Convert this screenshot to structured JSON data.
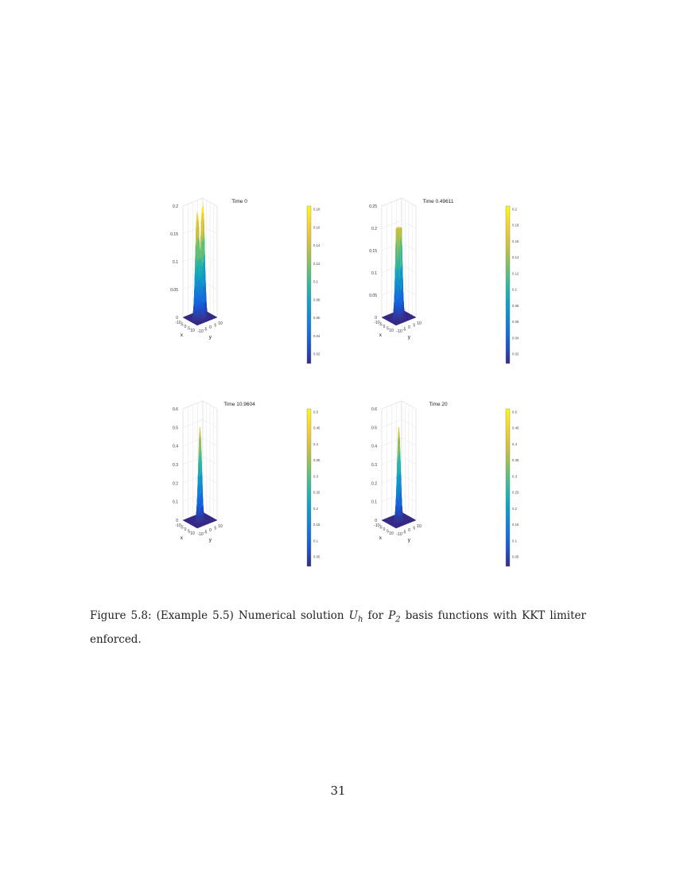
{
  "chart_data": [
    {
      "type": "surface3d",
      "title": "Time 0",
      "xlabel": "x",
      "ylabel": "y",
      "x_ticks": [
        "-10",
        "-5",
        "0",
        "5",
        "10"
      ],
      "y_ticks": [
        "-10",
        "-5",
        "0",
        "5",
        "10"
      ],
      "z_ticks": [
        "0",
        "0.05",
        "0.1",
        "0.15",
        "0.2"
      ],
      "zlim": [
        0,
        0.2
      ],
      "colorbar_ticks": [
        "0.18",
        "0.16",
        "0.14",
        "0.12",
        "0.1",
        "0.08",
        "0.06",
        "0.04",
        "0.02"
      ],
      "peaks": [
        {
          "x": 0,
          "y": -3,
          "height": 0.19
        },
        {
          "x": 0,
          "y": 3,
          "height": 0.2
        },
        {
          "x": -3,
          "y": 0,
          "height": 0.18
        },
        {
          "x": 3,
          "y": 0,
          "height": 0.2
        }
      ]
    },
    {
      "type": "surface3d",
      "title": "Time 0.49611",
      "xlabel": "x",
      "ylabel": "y",
      "x_ticks": [
        "-10",
        "-5",
        "0",
        "5",
        "10"
      ],
      "y_ticks": [
        "-10",
        "-5",
        "0",
        "5",
        "10"
      ],
      "z_ticks": [
        "0",
        "0.05",
        "0.1",
        "0.15",
        "0.2",
        "0.25"
      ],
      "zlim": [
        0,
        0.25
      ],
      "colorbar_ticks": [
        "0.2",
        "0.18",
        "0.16",
        "0.14",
        "0.12",
        "0.1",
        "0.08",
        "0.06",
        "0.04",
        "0.02"
      ],
      "peaks": [
        {
          "x": 0,
          "y": -1.5,
          "height": 0.2
        },
        {
          "x": 0,
          "y": 1.5,
          "height": 0.2
        },
        {
          "x": -1.5,
          "y": 0,
          "height": 0.19
        },
        {
          "x": 1.5,
          "y": 0,
          "height": 0.2
        }
      ]
    },
    {
      "type": "surface3d",
      "title": "Time 10.9604",
      "xlabel": "x",
      "ylabel": "y",
      "x_ticks": [
        "-10",
        "-5",
        "0",
        "5",
        "10"
      ],
      "y_ticks": [
        "-10",
        "-5",
        "0",
        "5",
        "10"
      ],
      "z_ticks": [
        "0",
        "0.1",
        "0.2",
        "0.3",
        "0.4",
        "0.5",
        "0.6"
      ],
      "zlim": [
        0,
        0.6
      ],
      "colorbar_ticks": [
        "0.5",
        "0.45",
        "0.4",
        "0.35",
        "0.3",
        "0.25",
        "0.2",
        "0.15",
        "0.1",
        "0.05"
      ],
      "peaks": [
        {
          "x": 0,
          "y": 0,
          "height": 0.5
        }
      ]
    },
    {
      "type": "surface3d",
      "title": "Time 20",
      "xlabel": "x",
      "ylabel": "y",
      "x_ticks": [
        "-10",
        "-5",
        "0",
        "5",
        "10"
      ],
      "y_ticks": [
        "-10",
        "-5",
        "0",
        "5",
        "10"
      ],
      "z_ticks": [
        "0",
        "0.1",
        "0.2",
        "0.3",
        "0.4",
        "0.5",
        "0.6"
      ],
      "zlim": [
        0,
        0.6
      ],
      "colorbar_ticks": [
        "0.5",
        "0.45",
        "0.4",
        "0.35",
        "0.3",
        "0.25",
        "0.2",
        "0.15",
        "0.1",
        "0.05"
      ],
      "peaks": [
        {
          "x": 0,
          "y": 0,
          "height": 0.5
        }
      ]
    }
  ],
  "caption": {
    "prefix": "Figure 5.8: (Example 5.5) Numerical solution ",
    "var": "U",
    "var_sub": "h",
    "middle": " for ",
    "space": "P",
    "space_sub": "2",
    "suffix": " basis functions with KKT limiter enforced."
  },
  "page_number": "31"
}
